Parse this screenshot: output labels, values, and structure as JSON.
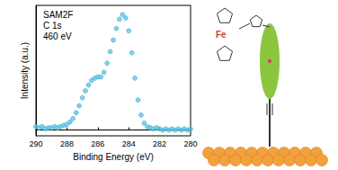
{
  "chart_data": {
    "type": "scatter",
    "annotations": [
      "SAM2F",
      "C 1s",
      "460 eV"
    ],
    "inset_labels": [
      "Fe"
    ],
    "x_label": "Binding Energy (eV)",
    "y_label": "Intensity (a.u.)",
    "x": [
      290.0,
      289.8,
      289.6,
      289.4,
      289.2,
      289.0,
      288.8,
      288.6,
      288.4,
      288.2,
      288.0,
      287.8,
      287.6,
      287.4,
      287.2,
      287.0,
      286.8,
      286.6,
      286.4,
      286.2,
      286.0,
      285.8,
      285.6,
      285.4,
      285.2,
      285.0,
      284.8,
      284.6,
      284.4,
      284.2,
      284.0,
      283.8,
      283.6,
      283.4,
      283.2,
      283.0,
      282.8,
      282.6,
      282.4,
      282.2,
      282.0,
      281.8,
      281.6,
      281.4,
      281.2,
      281.0,
      280.8,
      280.6,
      280.4,
      280.2,
      280.0
    ],
    "values": [
      0.03,
      0.02,
      0.03,
      0.01,
      0.02,
      0.02,
      0.03,
      0.02,
      0.03,
      0.04,
      0.05,
      0.07,
      0.1,
      0.15,
      0.21,
      0.28,
      0.34,
      0.39,
      0.43,
      0.45,
      0.46,
      0.46,
      0.5,
      0.58,
      0.68,
      0.78,
      0.88,
      0.96,
      1.0,
      0.97,
      0.86,
      0.67,
      0.45,
      0.26,
      0.13,
      0.06,
      0.03,
      0.02,
      0.01,
      0.02,
      0.01,
      0.0,
      0.01,
      0.0,
      0.01,
      0.0,
      0.01,
      0.0,
      0.01,
      0.0,
      0.01
    ],
    "color": "#5cc8e8",
    "marker": "circle",
    "xlim": [
      290,
      280
    ],
    "xticks": [
      290,
      288,
      286,
      284,
      282,
      280
    ],
    "ylim": [
      -0.05,
      1.08
    ],
    "tick_labels": "x",
    "grid": false
  }
}
